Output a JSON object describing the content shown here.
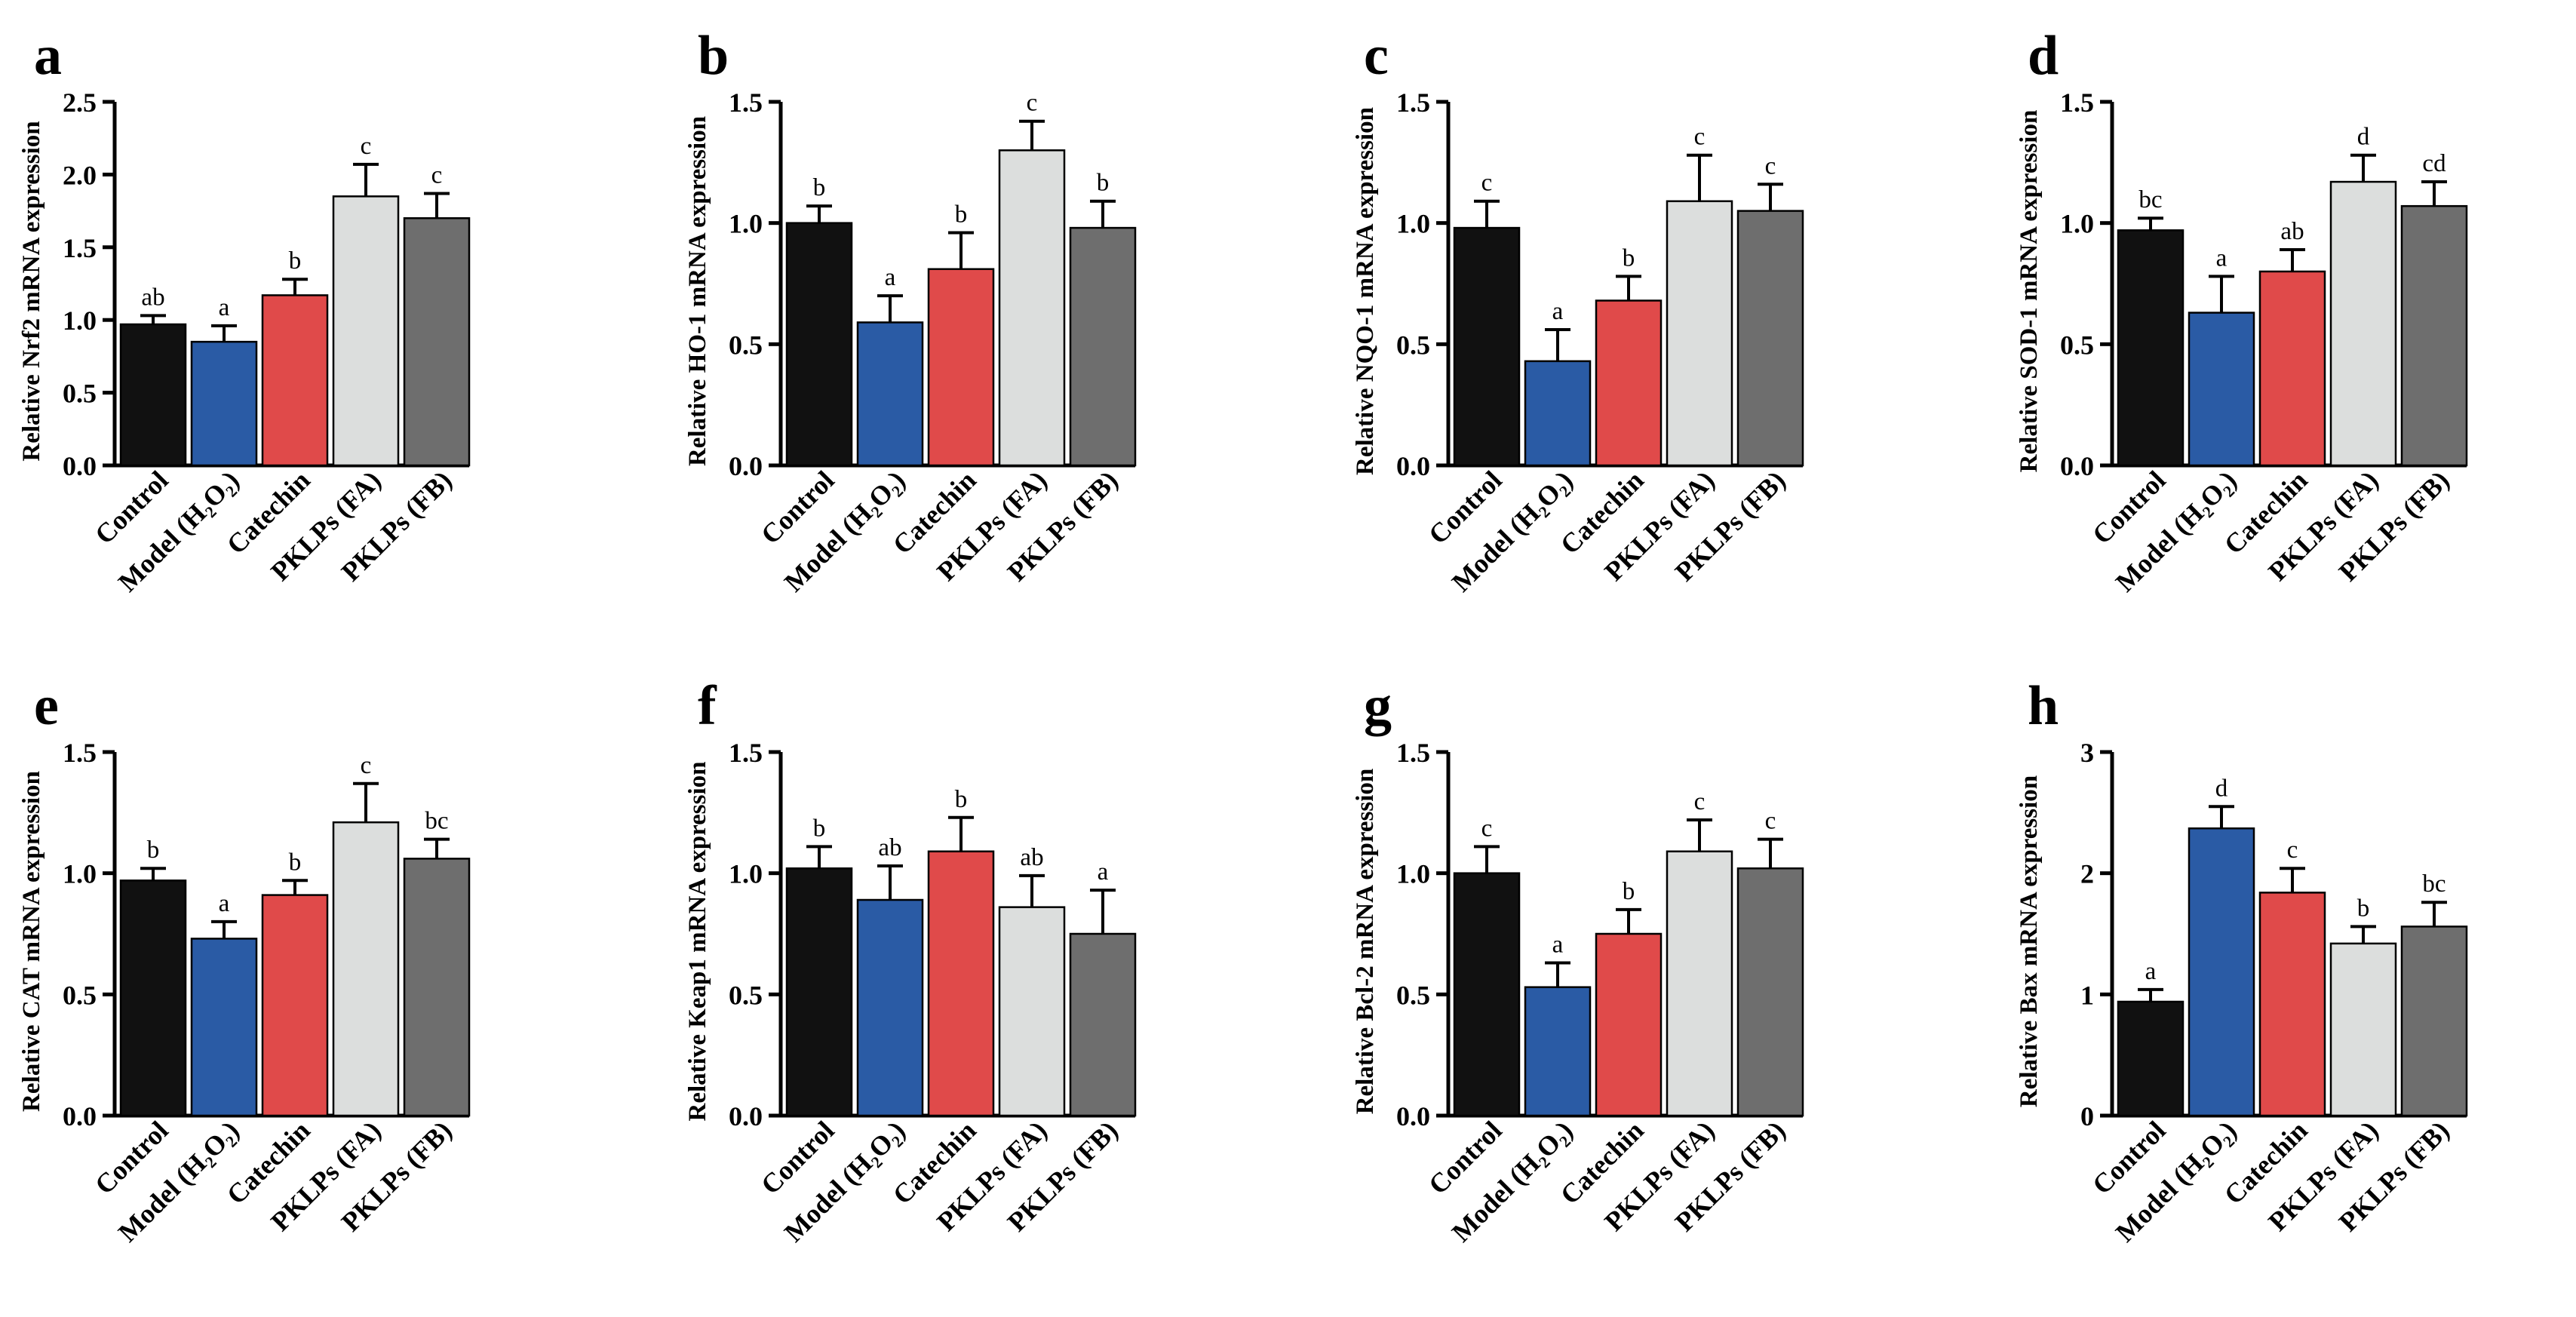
{
  "figure": {
    "categories": [
      "Control",
      "Model (H₂O₂)",
      "Catechin",
      "PKLPs (FA)",
      "PKLPs (FB)"
    ],
    "bar_colors": [
      "#111111",
      "#2a5ba5",
      "#e04a4a",
      "#dcdedd",
      "#6e6e6e"
    ]
  },
  "chart_data": [
    {
      "type": "bar",
      "panel": "a",
      "ylabel": "Relative Nrf2 mRNA expression",
      "ylim": [
        0,
        2.5
      ],
      "yticks": [
        "0.0",
        "0.5",
        "1.0",
        "1.5",
        "2.0",
        "2.5"
      ],
      "categories": [
        "Control",
        "Model (H₂O₂)",
        "Catechin",
        "PKLPs (FA)",
        "PKLPs (FB)"
      ],
      "values": [
        0.97,
        0.85,
        1.17,
        1.85,
        1.7
      ],
      "errors": [
        0.06,
        0.11,
        0.11,
        0.22,
        0.17
      ],
      "letters": [
        "ab",
        "a",
        "b",
        "c",
        "c"
      ]
    },
    {
      "type": "bar",
      "panel": "b",
      "ylabel": "Relative HO-1 mRNA expression",
      "ylim": [
        0,
        1.5
      ],
      "yticks": [
        "0.0",
        "0.5",
        "1.0",
        "1.5"
      ],
      "categories": [
        "Control",
        "Model (H₂O₂)",
        "Catechin",
        "PKLPs (FA)",
        "PKLPs (FB)"
      ],
      "values": [
        1.0,
        0.59,
        0.81,
        1.3,
        0.98
      ],
      "errors": [
        0.07,
        0.11,
        0.15,
        0.12,
        0.11
      ],
      "letters": [
        "b",
        "a",
        "b",
        "c",
        "b"
      ]
    },
    {
      "type": "bar",
      "panel": "c",
      "ylabel": "Relative NQO-1 mRNA expression",
      "ylim": [
        0,
        1.5
      ],
      "yticks": [
        "0.0",
        "0.5",
        "1.0",
        "1.5"
      ],
      "categories": [
        "Control",
        "Model (H₂O₂)",
        "Catechin",
        "PKLPs (FA)",
        "PKLPs (FB)"
      ],
      "values": [
        0.98,
        0.43,
        0.68,
        1.09,
        1.05
      ],
      "errors": [
        0.11,
        0.13,
        0.1,
        0.19,
        0.11
      ],
      "letters": [
        "c",
        "a",
        "b",
        "c",
        "c"
      ]
    },
    {
      "type": "bar",
      "panel": "d",
      "ylabel": "Relative SOD-1 mRNA expression",
      "ylim": [
        0,
        1.5
      ],
      "yticks": [
        "0.0",
        "0.5",
        "1.0",
        "1.5"
      ],
      "categories": [
        "Control",
        "Model (H₂O₂)",
        "Catechin",
        "PKLPs (FA)",
        "PKLPs (FB)"
      ],
      "values": [
        0.97,
        0.63,
        0.8,
        1.17,
        1.07
      ],
      "errors": [
        0.05,
        0.15,
        0.09,
        0.11,
        0.1
      ],
      "letters": [
        "bc",
        "a",
        "ab",
        "d",
        "cd"
      ]
    },
    {
      "type": "bar",
      "panel": "e",
      "ylabel": "Relative CAT mRNA expression",
      "ylim": [
        0,
        1.5
      ],
      "yticks": [
        "0.0",
        "0.5",
        "1.0",
        "1.5"
      ],
      "categories": [
        "Control",
        "Model (H₂O₂)",
        "Catechin",
        "PKLPs (FA)",
        "PKLPs (FB)"
      ],
      "values": [
        0.97,
        0.73,
        0.91,
        1.21,
        1.06
      ],
      "errors": [
        0.05,
        0.07,
        0.06,
        0.16,
        0.08
      ],
      "letters": [
        "b",
        "a",
        "b",
        "c",
        "bc"
      ]
    },
    {
      "type": "bar",
      "panel": "f",
      "ylabel": "Relative Keap1 mRNA expression",
      "ylim": [
        0,
        1.5
      ],
      "yticks": [
        "0.0",
        "0.5",
        "1.0",
        "1.5"
      ],
      "categories": [
        "Control",
        "Model (H₂O₂)",
        "Catechin",
        "PKLPs (FA)",
        "PKLPs (FB)"
      ],
      "values": [
        1.02,
        0.89,
        1.09,
        0.86,
        0.75
      ],
      "errors": [
        0.09,
        0.14,
        0.14,
        0.13,
        0.18
      ],
      "letters": [
        "b",
        "ab",
        "b",
        "ab",
        "a"
      ]
    },
    {
      "type": "bar",
      "panel": "g",
      "ylabel": "Relative Bcl-2 mRNA expression",
      "ylim": [
        0,
        1.5
      ],
      "yticks": [
        "0.0",
        "0.5",
        "1.0",
        "1.5"
      ],
      "categories": [
        "Control",
        "Model (H₂O₂)",
        "Catechin",
        "PKLPs (FA)",
        "PKLPs (FB)"
      ],
      "values": [
        1.0,
        0.53,
        0.75,
        1.09,
        1.02
      ],
      "errors": [
        0.11,
        0.1,
        0.1,
        0.13,
        0.12
      ],
      "letters": [
        "c",
        "a",
        "b",
        "c",
        "c"
      ]
    },
    {
      "type": "bar",
      "panel": "h",
      "ylabel": "Relative Bax mRNA expression",
      "ylim": [
        0,
        3
      ],
      "yticks": [
        "0",
        "1",
        "2",
        "3"
      ],
      "categories": [
        "Control",
        "Model (H₂O₂)",
        "Catechin",
        "PKLPs (FA)",
        "PKLPs (FB)"
      ],
      "values": [
        0.94,
        2.37,
        1.84,
        1.42,
        1.56
      ],
      "errors": [
        0.1,
        0.18,
        0.2,
        0.14,
        0.2
      ],
      "letters": [
        "a",
        "d",
        "c",
        "b",
        "bc"
      ]
    }
  ]
}
